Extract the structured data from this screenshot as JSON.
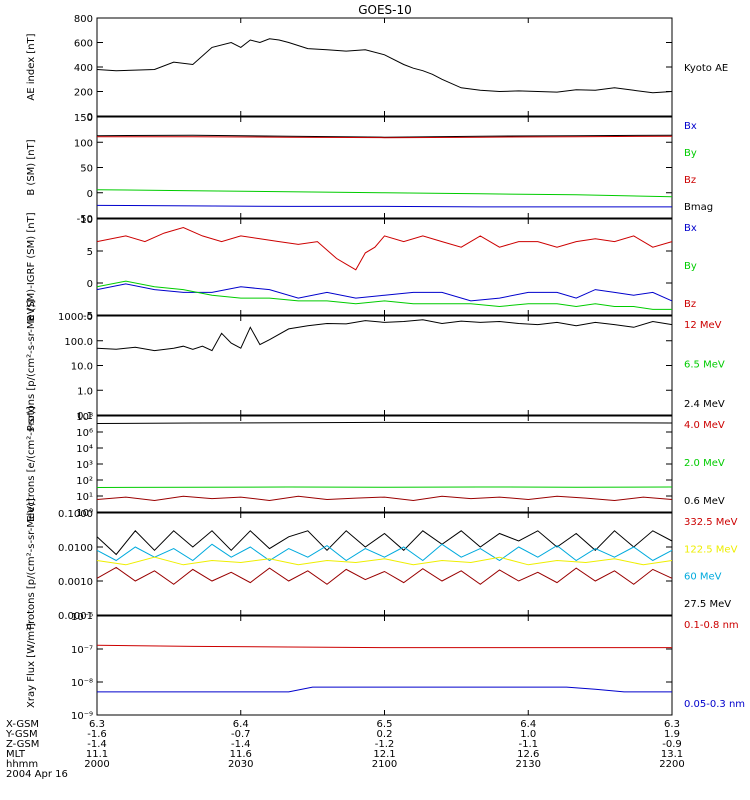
{
  "title": "GOES-10",
  "colors": {
    "black": "#000000",
    "red": "#cc0000",
    "green": "#00cc00",
    "blue": "#0000cc",
    "cyan": "#00aadd",
    "yellow": "#eeee00",
    "darkred": "#990000"
  },
  "time_axis": {
    "range": [
      0,
      120
    ],
    "ticks": [
      0,
      30,
      60,
      90,
      120
    ],
    "rows": [
      {
        "label": "X-GSM",
        "values": [
          "6.3",
          "6.4",
          "6.5",
          "6.4",
          "6.3"
        ]
      },
      {
        "label": "Y-GSM",
        "values": [
          "-1.6",
          "-0.7",
          "0.2",
          "1.0",
          "1.9"
        ]
      },
      {
        "label": "Z-GSM",
        "values": [
          "-1.4",
          "-1.4",
          "-1.2",
          "-1.1",
          "-0.9"
        ]
      },
      {
        "label": "MLT",
        "values": [
          "11.1",
          "11.6",
          "12.1",
          "12.6",
          "13.1"
        ]
      },
      {
        "label": "hhmm",
        "values": [
          "2000",
          "2030",
          "2100",
          "2130",
          "2200"
        ]
      }
    ],
    "date": "2004 Apr 16"
  },
  "chart_data": [
    {
      "type": "line",
      "ylabel": "AE index [nT]",
      "ylim": [
        0,
        800
      ],
      "yticks": [
        "800",
        "600",
        "400",
        "200",
        "0"
      ],
      "right_labels": [
        {
          "text": "Kyoto AE",
          "color": "#000000"
        }
      ],
      "series": [
        {
          "name": "Kyoto AE",
          "color": "#000000",
          "x": [
            0,
            4,
            8,
            12,
            16,
            20,
            24,
            28,
            30,
            32,
            34,
            36,
            38,
            40,
            44,
            48,
            52,
            56,
            60,
            64,
            66,
            68,
            70,
            72,
            76,
            80,
            84,
            88,
            92,
            96,
            100,
            104,
            108,
            112,
            116,
            120
          ],
          "values": [
            380,
            370,
            375,
            380,
            440,
            420,
            560,
            600,
            560,
            620,
            600,
            630,
            620,
            600,
            550,
            540,
            530,
            540,
            500,
            420,
            390,
            370,
            340,
            300,
            230,
            210,
            200,
            205,
            200,
            195,
            215,
            210,
            230,
            210,
            190,
            200
          ]
        }
      ]
    },
    {
      "type": "line",
      "ylabel": "B (SM) [nT]",
      "ylim": [
        -50,
        150
      ],
      "yticks": [
        "150",
        "100",
        "50",
        "0",
        "-50"
      ],
      "right_labels": [
        {
          "text": "Bx",
          "color": "#0000cc"
        },
        {
          "text": "By",
          "color": "#00cc00"
        },
        {
          "text": "Bz",
          "color": "#cc0000"
        },
        {
          "text": "Bmag",
          "color": "#000000"
        }
      ],
      "series": [
        {
          "name": "Bmag",
          "color": "#000000",
          "x": [
            0,
            20,
            40,
            60,
            80,
            100,
            120
          ],
          "values": [
            113,
            114,
            112,
            110,
            112,
            113,
            114
          ]
        },
        {
          "name": "Bz",
          "color": "#cc0000",
          "x": [
            0,
            20,
            40,
            60,
            80,
            100,
            120
          ],
          "values": [
            111,
            111,
            110,
            109,
            110,
            111,
            112
          ]
        },
        {
          "name": "By",
          "color": "#00cc00",
          "x": [
            0,
            20,
            40,
            60,
            80,
            100,
            120
          ],
          "values": [
            6,
            4,
            2,
            0,
            -2,
            -4,
            -8
          ]
        },
        {
          "name": "Bx",
          "color": "#0000cc",
          "x": [
            0,
            20,
            40,
            60,
            80,
            100,
            120
          ],
          "values": [
            -25,
            -26,
            -27,
            -27,
            -28,
            -28,
            -28
          ]
        }
      ]
    },
    {
      "type": "line",
      "ylabel": "B (SM)-IGRF (SM) [nT]",
      "ylim": [
        -6,
        11
      ],
      "yticks": [
        "10",
        "5",
        "0",
        "-5"
      ],
      "right_labels": [
        {
          "text": "Bx",
          "color": "#0000cc"
        },
        {
          "text": "By",
          "color": "#00cc00"
        },
        {
          "text": "Bz",
          "color": "#cc0000"
        }
      ],
      "series": [
        {
          "name": "Bz",
          "color": "#cc0000",
          "x": [
            0,
            6,
            10,
            14,
            18,
            22,
            26,
            30,
            34,
            38,
            42,
            46,
            50,
            52,
            54,
            56,
            58,
            60,
            64,
            68,
            72,
            76,
            80,
            84,
            88,
            92,
            96,
            100,
            104,
            108,
            112,
            116,
            120
          ],
          "values": [
            7,
            8,
            7,
            8.5,
            9.5,
            8,
            7,
            8,
            7.5,
            7,
            6.5,
            7,
            4,
            3,
            2,
            5,
            6,
            8,
            7,
            8,
            7,
            6,
            8,
            6,
            7,
            7,
            6,
            7,
            7.5,
            7,
            8,
            6,
            7
          ]
        },
        {
          "name": "Bx",
          "color": "#0000cc",
          "x": [
            0,
            6,
            12,
            18,
            24,
            30,
            36,
            42,
            48,
            54,
            60,
            66,
            72,
            78,
            84,
            90,
            96,
            100,
            104,
            108,
            112,
            116,
            120
          ],
          "values": [
            -1.5,
            -0.5,
            -1.5,
            -2,
            -2,
            -1,
            -1.5,
            -3,
            -2,
            -3,
            -2.5,
            -2,
            -2,
            -3.5,
            -3,
            -2,
            -2,
            -3,
            -1.5,
            -2,
            -2.5,
            -2,
            -3.5
          ]
        },
        {
          "name": "By",
          "color": "#00cc00",
          "x": [
            0,
            6,
            12,
            18,
            24,
            30,
            36,
            42,
            48,
            54,
            60,
            66,
            72,
            78,
            84,
            90,
            96,
            100,
            104,
            108,
            112,
            116,
            120
          ],
          "values": [
            -1,
            0,
            -1,
            -1.5,
            -2.5,
            -3,
            -3,
            -3.5,
            -3.5,
            -4,
            -3.5,
            -4,
            -4,
            -4,
            -4.5,
            -4,
            -4,
            -4.5,
            -4,
            -4.5,
            -4.5,
            -5,
            -5
          ]
        }
      ]
    },
    {
      "type": "line",
      "ylabel": "Protons [p/(cm²-s-sr-MeV)]",
      "ylog": true,
      "ylim": [
        0.1,
        1000
      ],
      "yticks": [
        "1000.0",
        "100.0",
        "10.0",
        "1.0",
        "0.1"
      ],
      "right_labels": [
        {
          "text": "12 MeV",
          "color": "#cc0000"
        },
        {
          "text": "6.5 MeV",
          "color": "#00cc00"
        },
        {
          "text": "2.4 MeV",
          "color": "#000000"
        }
      ],
      "series": [
        {
          "name": "2.4 MeV",
          "color": "#000000",
          "x": [
            0,
            4,
            8,
            12,
            16,
            18,
            20,
            22,
            24,
            26,
            28,
            30,
            32,
            34,
            36,
            40,
            44,
            48,
            52,
            56,
            60,
            64,
            68,
            72,
            76,
            80,
            84,
            88,
            92,
            96,
            100,
            104,
            108,
            112,
            116,
            120
          ],
          "values": [
            50,
            45,
            55,
            40,
            50,
            60,
            45,
            60,
            40,
            200,
            80,
            50,
            350,
            70,
            110,
            300,
            400,
            500,
            480,
            650,
            550,
            600,
            700,
            500,
            620,
            550,
            600,
            500,
            450,
            550,
            400,
            550,
            450,
            350,
            600,
            450
          ]
        }
      ]
    },
    {
      "type": "line",
      "ylabel": "Electrons [e/(cm²-s-sr)]",
      "ylog": true,
      "ylim": [
        1,
        1000000000
      ],
      "yticks": [
        "10⁸",
        "10⁶",
        "10⁴",
        "10³",
        "10²",
        "10¹",
        "10⁰"
      ],
      "right_labels": [
        {
          "text": "4.0 MeV",
          "color": "#cc0000"
        },
        {
          "text": "2.0 MeV",
          "color": "#00cc00"
        },
        {
          "text": "0.6 MeV",
          "color": "#000000"
        }
      ],
      "series": [
        {
          "name": "0.6 MeV",
          "color": "#000000",
          "x": [
            0,
            20,
            40,
            60,
            80,
            100,
            120
          ],
          "values": [
            200000000,
            220000000,
            230000000,
            250000000,
            240000000,
            230000000,
            220000000
          ]
        },
        {
          "name": "2.0 MeV",
          "color": "#00cc00",
          "x": [
            0,
            20,
            40,
            60,
            80,
            100,
            120
          ],
          "values": [
            200,
            210,
            220,
            210,
            220,
            210,
            220
          ]
        },
        {
          "name": "4.0 MeV",
          "color": "#990000",
          "x": [
            0,
            6,
            12,
            18,
            24,
            30,
            36,
            42,
            48,
            54,
            60,
            66,
            72,
            78,
            84,
            90,
            96,
            102,
            108,
            114,
            120
          ],
          "values": [
            15,
            25,
            12,
            30,
            18,
            25,
            12,
            30,
            15,
            20,
            25,
            12,
            30,
            18,
            25,
            15,
            30,
            20,
            12,
            25,
            15
          ]
        }
      ]
    },
    {
      "type": "line",
      "ylabel": "Protons [p/(cm²-s-sr-MeV)]",
      "ylog": true,
      "ylim": [
        0.0001,
        0.1
      ],
      "yticks": [
        "0.1000",
        "0.0100",
        "0.0010",
        "0.0001"
      ],
      "right_labels": [
        {
          "text": "332.5 MeV",
          "color": "#cc0000"
        },
        {
          "text": "122.5 MeV",
          "color": "#eeee00"
        },
        {
          "text": "60 MeV",
          "color": "#00aadd"
        },
        {
          "text": "27.5 MeV",
          "color": "#000000"
        }
      ],
      "series": [
        {
          "name": "27.5 MeV",
          "color": "#000000",
          "x": [
            0,
            4,
            8,
            12,
            16,
            20,
            24,
            28,
            32,
            36,
            40,
            44,
            48,
            52,
            56,
            60,
            64,
            68,
            72,
            76,
            80,
            84,
            88,
            92,
            96,
            100,
            104,
            108,
            112,
            116,
            120
          ],
          "values": [
            0.02,
            0.006,
            0.03,
            0.008,
            0.03,
            0.01,
            0.03,
            0.008,
            0.03,
            0.009,
            0.02,
            0.03,
            0.008,
            0.03,
            0.01,
            0.025,
            0.008,
            0.03,
            0.012,
            0.03,
            0.01,
            0.025,
            0.015,
            0.03,
            0.01,
            0.025,
            0.008,
            0.03,
            0.01,
            0.03,
            0.015
          ]
        },
        {
          "name": "60 MeV",
          "color": "#00aadd",
          "x": [
            0,
            4,
            8,
            12,
            16,
            20,
            24,
            28,
            32,
            36,
            40,
            44,
            48,
            52,
            56,
            60,
            64,
            68,
            72,
            76,
            80,
            84,
            88,
            92,
            96,
            100,
            104,
            108,
            112,
            116,
            120
          ],
          "values": [
            0.008,
            0.004,
            0.01,
            0.005,
            0.009,
            0.004,
            0.012,
            0.005,
            0.01,
            0.004,
            0.009,
            0.005,
            0.011,
            0.004,
            0.009,
            0.005,
            0.01,
            0.004,
            0.012,
            0.005,
            0.009,
            0.004,
            0.01,
            0.005,
            0.011,
            0.004,
            0.009,
            0.005,
            0.01,
            0.004,
            0.008
          ]
        },
        {
          "name": "122.5 MeV",
          "color": "#eeee00",
          "x": [
            0,
            6,
            12,
            18,
            24,
            30,
            36,
            42,
            48,
            54,
            60,
            66,
            72,
            78,
            84,
            90,
            96,
            102,
            108,
            114,
            120
          ],
          "values": [
            0.004,
            0.003,
            0.005,
            0.003,
            0.004,
            0.0035,
            0.0045,
            0.003,
            0.004,
            0.0035,
            0.0045,
            0.003,
            0.004,
            0.0035,
            0.005,
            0.003,
            0.004,
            0.0035,
            0.0045,
            0.003,
            0.004
          ]
        },
        {
          "name": "332.5 MeV",
          "color": "#990000",
          "x": [
            0,
            4,
            8,
            12,
            16,
            20,
            24,
            28,
            32,
            36,
            40,
            44,
            48,
            52,
            56,
            60,
            64,
            68,
            72,
            76,
            80,
            84,
            88,
            92,
            96,
            100,
            104,
            108,
            112,
            116,
            120
          ],
          "values": [
            0.0012,
            0.0025,
            0.001,
            0.002,
            0.0008,
            0.0022,
            0.001,
            0.0018,
            0.0009,
            0.0024,
            0.001,
            0.002,
            0.0008,
            0.0022,
            0.0011,
            0.0019,
            0.0009,
            0.0023,
            0.001,
            0.002,
            0.0008,
            0.0021,
            0.001,
            0.0018,
            0.0009,
            0.0024,
            0.001,
            0.002,
            0.0008,
            0.0022,
            0.0012
          ]
        }
      ]
    },
    {
      "type": "line",
      "ylabel": "Xray Flux [W/m²]",
      "ylog": true,
      "ylim": [
        1e-09,
        1e-06
      ],
      "yticks": [
        "10⁻⁶",
        "10⁻⁷",
        "10⁻⁸",
        "10⁻⁹"
      ],
      "right_labels": [
        {
          "text": "0.1-0.8 nm",
          "color": "#cc0000"
        },
        {
          "text": "0.05-0.3 nm",
          "color": "#0000cc"
        }
      ],
      "series": [
        {
          "name": "0.1-0.8 nm",
          "color": "#cc0000",
          "x": [
            0,
            20,
            40,
            60,
            80,
            100,
            120
          ],
          "values": [
            1.3e-07,
            1.2e-07,
            1.15e-07,
            1.1e-07,
            1.1e-07,
            1.1e-07,
            1.1e-07
          ]
        },
        {
          "name": "0.05-0.3 nm",
          "color": "#0000cc",
          "x": [
            0,
            30,
            40,
            45,
            60,
            90,
            98,
            104,
            110,
            120
          ],
          "values": [
            5e-09,
            5e-09,
            5e-09,
            7e-09,
            7e-09,
            7e-09,
            7e-09,
            6e-09,
            5e-09,
            5e-09
          ]
        }
      ]
    }
  ]
}
